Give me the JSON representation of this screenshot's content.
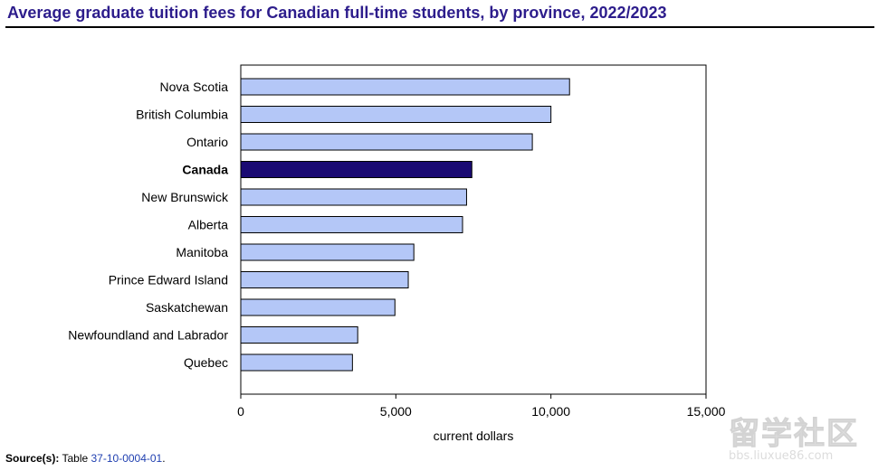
{
  "title": "Average graduate tuition fees for Canadian full-time students, by province, 2022/2023",
  "source": {
    "label": "Source(s):",
    "text": "Table",
    "link": "37-10-0004-01",
    "suffix": "."
  },
  "watermark": {
    "big": "留学社区",
    "small": "bbs.liuxue86.com"
  },
  "colors": {
    "bar": "#b4c7f7",
    "highlight": "#1a0a73",
    "title": "#2d1d8c"
  },
  "chart_data": {
    "type": "bar",
    "orientation": "horizontal",
    "categories": [
      "Nova Scotia",
      "British Columbia",
      "Ontario",
      "Canada",
      "New Brunswick",
      "Alberta",
      "Manitoba",
      "Prince Edward Island",
      "Saskatchewan",
      "Newfoundland and Labrador",
      "Quebec"
    ],
    "values": [
      10600,
      10000,
      9400,
      7450,
      7280,
      7150,
      5580,
      5400,
      4970,
      3770,
      3600
    ],
    "highlight": "Canada",
    "xlabel": "current dollars",
    "xlim": [
      0,
      15000
    ],
    "xticks": [
      0,
      5000,
      10000,
      15000
    ],
    "xtick_labels": [
      "0",
      "5,000",
      "10,000",
      "15,000"
    ],
    "grid": false
  }
}
